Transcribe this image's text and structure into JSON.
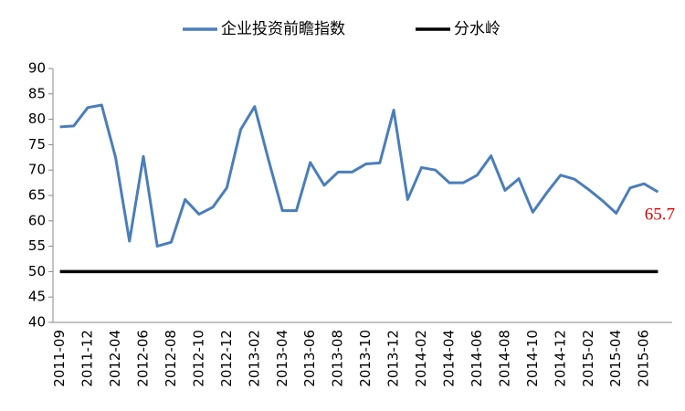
{
  "chart_data": {
    "type": "line",
    "categories": [
      "2011-09",
      null,
      "2011-12",
      null,
      "2012-04",
      null,
      "2012-06",
      null,
      "2012-08",
      null,
      "2012-10",
      null,
      "2012-12",
      null,
      "2013-02",
      null,
      "2013-04",
      null,
      "2013-06",
      null,
      "2013-08",
      null,
      "2013-10",
      null,
      "2013-12",
      null,
      "2014-02",
      null,
      "2014-04",
      null,
      "2014-06",
      null,
      "2014-08",
      null,
      "2014-10",
      null,
      "2014-12",
      null,
      "2015-02",
      null,
      "2015-04",
      null,
      "2015-06",
      null
    ],
    "series": [
      {
        "name": "企业投资前瞻指数",
        "color": "#4a7ebb",
        "values": [
          78.5,
          78.7,
          82.3,
          82.8,
          72.5,
          56,
          72.7,
          55,
          55.8,
          64.2,
          61.3,
          62.7,
          66.5,
          78,
          82.5,
          72,
          62,
          62,
          71.5,
          67,
          69.6,
          69.6,
          71.2,
          71.4,
          81.8,
          64.2,
          70.5,
          70,
          67.5,
          67.5,
          69,
          72.8,
          66,
          68.3,
          61.7,
          65.5,
          69,
          68.2,
          66.2,
          64,
          61.5,
          66.5,
          67.3,
          65.7
        ]
      },
      {
        "name": "分水岭",
        "color": "#000000",
        "values": [
          50,
          50,
          50,
          50,
          50,
          50,
          50,
          50,
          50,
          50,
          50,
          50,
          50,
          50,
          50,
          50,
          50,
          50,
          50,
          50,
          50,
          50,
          50,
          50,
          50,
          50,
          50,
          50,
          50,
          50,
          50,
          50,
          50,
          50,
          50,
          50,
          50,
          50,
          50,
          50,
          50,
          50,
          50,
          50
        ]
      }
    ],
    "ylim": [
      40,
      90
    ],
    "yticks": [
      40,
      45,
      50,
      55,
      60,
      65,
      70,
      75,
      80,
      85,
      90
    ],
    "grid": false,
    "legend": "top"
  }
}
